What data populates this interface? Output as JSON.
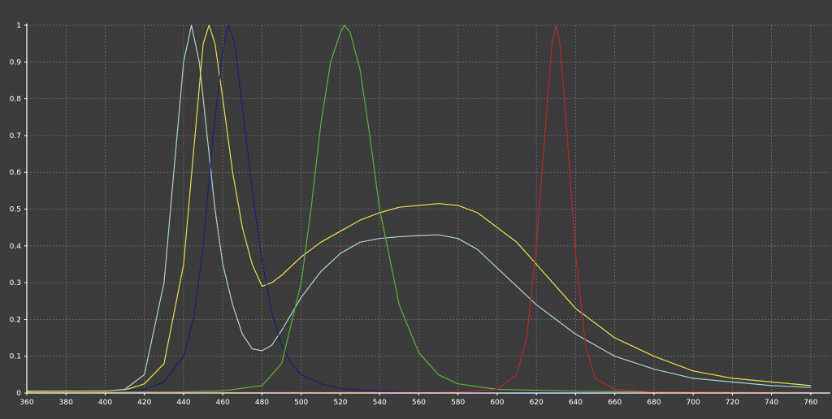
{
  "chart_data": {
    "type": "line",
    "title": "",
    "xlabel": "",
    "ylabel": "",
    "xlim": [
      360,
      770
    ],
    "ylim": [
      0,
      1
    ],
    "grid": true,
    "legend": "none",
    "x_ticks": [
      "360",
      "380",
      "400",
      "420",
      "440",
      "460",
      "480",
      "500",
      "520",
      "540",
      "560",
      "580",
      "600",
      "620",
      "640",
      "660",
      "680",
      "700",
      "720",
      "740",
      "760"
    ],
    "y_ticks": [
      "0",
      "0.1",
      "0.2",
      "0.3",
      "0.4",
      "0.5",
      "0.6",
      "0.7",
      "0.8",
      "0.9",
      "1"
    ],
    "colors": {
      "background": "#3c3c3c",
      "grid": "#6e6e6e",
      "axis": "#ffffff",
      "text": "#ffffff"
    },
    "series": [
      {
        "color": "#a8d4d0",
        "x": [
          360,
          380,
          400,
          410,
          420,
          430,
          435,
          440,
          444,
          448,
          452,
          456,
          460,
          465,
          470,
          475,
          480,
          485,
          490,
          500,
          510,
          520,
          530,
          540,
          550,
          560,
          570,
          580,
          590,
          600,
          610,
          620,
          640,
          660,
          680,
          700,
          720,
          740,
          760
        ],
        "y": [
          0.005,
          0.005,
          0.005,
          0.01,
          0.05,
          0.3,
          0.6,
          0.9,
          1.0,
          0.9,
          0.7,
          0.5,
          0.35,
          0.24,
          0.16,
          0.12,
          0.115,
          0.13,
          0.17,
          0.26,
          0.33,
          0.38,
          0.41,
          0.42,
          0.425,
          0.428,
          0.43,
          0.42,
          0.39,
          0.34,
          0.29,
          0.24,
          0.16,
          0.1,
          0.065,
          0.04,
          0.03,
          0.02,
          0.015
        ]
      },
      {
        "color": "#e6e04e",
        "x": [
          360,
          380,
          400,
          410,
          420,
          430,
          440,
          445,
          450,
          453,
          456,
          460,
          465,
          470,
          475,
          480,
          485,
          490,
          500,
          510,
          520,
          530,
          540,
          550,
          560,
          570,
          580,
          590,
          600,
          610,
          620,
          640,
          660,
          680,
          700,
          720,
          740,
          760
        ],
        "y": [
          0.005,
          0.005,
          0.005,
          0.008,
          0.025,
          0.08,
          0.35,
          0.65,
          0.95,
          1.0,
          0.95,
          0.8,
          0.6,
          0.45,
          0.35,
          0.29,
          0.3,
          0.32,
          0.37,
          0.41,
          0.44,
          0.47,
          0.49,
          0.505,
          0.51,
          0.515,
          0.51,
          0.49,
          0.45,
          0.41,
          0.35,
          0.23,
          0.15,
          0.1,
          0.06,
          0.04,
          0.03,
          0.02
        ]
      },
      {
        "color": "#1e1e78",
        "x": [
          360,
          400,
          420,
          430,
          440,
          445,
          450,
          455,
          460,
          463,
          466,
          470,
          475,
          480,
          485,
          490,
          495,
          500,
          510,
          520,
          540,
          560,
          580,
          600,
          650,
          760
        ],
        "y": [
          0.002,
          0.003,
          0.01,
          0.03,
          0.1,
          0.2,
          0.4,
          0.7,
          0.93,
          1.0,
          0.95,
          0.78,
          0.55,
          0.36,
          0.22,
          0.13,
          0.08,
          0.05,
          0.025,
          0.012,
          0.005,
          0.003,
          0.002,
          0.002,
          0.001,
          0.001
        ]
      },
      {
        "color": "#58b038",
        "x": [
          360,
          440,
          460,
          480,
          490,
          500,
          505,
          510,
          515,
          520,
          522,
          525,
          530,
          535,
          540,
          550,
          560,
          570,
          580,
          600,
          640,
          700,
          760
        ],
        "y": [
          0.002,
          0.003,
          0.006,
          0.02,
          0.08,
          0.3,
          0.5,
          0.73,
          0.9,
          0.98,
          1.0,
          0.98,
          0.88,
          0.7,
          0.5,
          0.24,
          0.11,
          0.05,
          0.025,
          0.01,
          0.005,
          0.002,
          0.001
        ]
      },
      {
        "color": "#b82828",
        "x": [
          360,
          580,
          600,
          610,
          615,
          620,
          625,
          628,
          630,
          632,
          635,
          640,
          645,
          650,
          660,
          680,
          760
        ],
        "y": [
          0.001,
          0.002,
          0.01,
          0.05,
          0.15,
          0.4,
          0.75,
          0.95,
          1.0,
          0.95,
          0.75,
          0.38,
          0.13,
          0.04,
          0.01,
          0.003,
          0.001
        ]
      }
    ]
  }
}
